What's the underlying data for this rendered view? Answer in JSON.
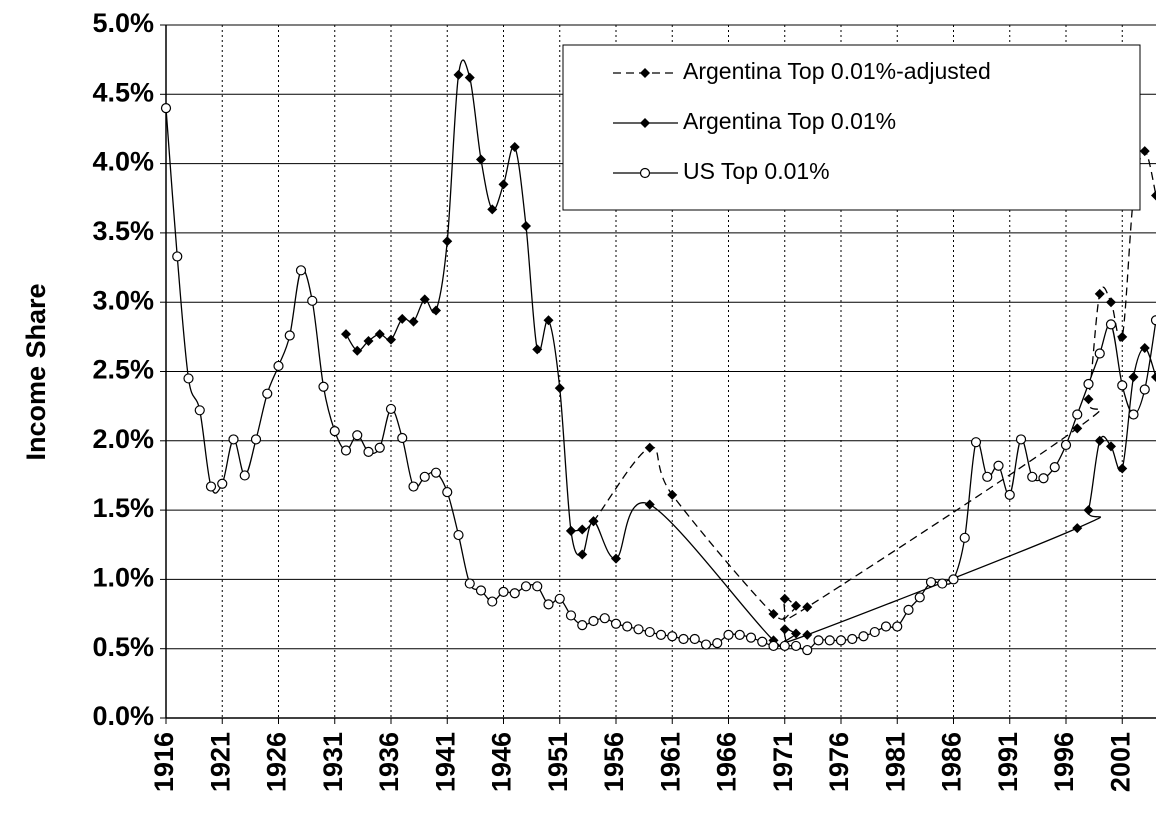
{
  "chart_data": {
    "type": "line",
    "y_label": "Income Share",
    "xlim": [
      1916,
      2004
    ],
    "xticks": [
      1916,
      1921,
      1926,
      1931,
      1936,
      1941,
      1946,
      1951,
      1956,
      1961,
      1966,
      1971,
      1976,
      1981,
      1986,
      1991,
      1996,
      2001
    ],
    "ylim": [
      0,
      5
    ],
    "yticks": [
      {
        "value": 0,
        "label": "0.0%"
      },
      {
        "value": 0.5,
        "label": "0.5%"
      },
      {
        "value": 1,
        "label": "1.0%"
      },
      {
        "value": 1.5,
        "label": "1.5%"
      },
      {
        "value": 2,
        "label": "2.0%"
      },
      {
        "value": 2.5,
        "label": "2.5%"
      },
      {
        "value": 3,
        "label": "3.0%"
      },
      {
        "value": 3.5,
        "label": "3.5%"
      },
      {
        "value": 4,
        "label": "4.0%"
      },
      {
        "value": 4.5,
        "label": "4.5%"
      },
      {
        "value": 5,
        "label": "5.0%"
      }
    ],
    "grid": true,
    "legend": "top-right",
    "series": [
      {
        "name": "Argentina Top 0.01%-adjusted",
        "color": "#000000",
        "dash": "dashed",
        "marker": "diamond",
        "x": [
          1952,
          1953,
          1954,
          1959,
          1961,
          1970,
          1971,
          1972,
          1973,
          1997,
          1998,
          1999,
          2000,
          2001,
          2002,
          2003,
          2004
        ],
        "values": [
          1.35,
          1.36,
          1.42,
          1.95,
          1.61,
          0.75,
          0.86,
          0.81,
          0.8,
          2.09,
          2.3,
          3.06,
          3.0,
          2.75,
          3.76,
          4.09,
          3.77
        ]
      },
      {
        "name": "Argentina Top 0.01%",
        "color": "#000000",
        "dash": "solid",
        "marker": "diamond",
        "x": [
          1932,
          1933,
          1934,
          1935,
          1936,
          1937,
          1938,
          1939,
          1940,
          1941,
          1942,
          1943,
          1944,
          1945,
          1946,
          1947,
          1948,
          1949,
          1950,
          1951,
          1952,
          1953,
          1954,
          1956,
          1959,
          1970,
          1971,
          1972,
          1973,
          1997,
          1998,
          1999,
          2000,
          2001,
          2002,
          2003,
          2004
        ],
        "values": [
          2.77,
          2.65,
          2.72,
          2.77,
          2.73,
          2.88,
          2.86,
          3.02,
          2.94,
          3.44,
          4.64,
          4.62,
          4.03,
          3.67,
          3.85,
          4.12,
          3.55,
          2.66,
          2.87,
          2.38,
          1.35,
          1.18,
          1.42,
          1.15,
          1.54,
          0.56,
          0.64,
          0.61,
          0.6,
          1.37,
          1.5,
          2.0,
          1.96,
          1.8,
          2.46,
          2.67,
          2.46
        ]
      },
      {
        "name": "US Top 0.01%",
        "color": "#000000",
        "dash": "solid",
        "marker": "circle",
        "x": [
          1916,
          1917,
          1918,
          1919,
          1920,
          1921,
          1922,
          1923,
          1924,
          1925,
          1926,
          1927,
          1928,
          1929,
          1930,
          1931,
          1932,
          1933,
          1934,
          1935,
          1936,
          1937,
          1938,
          1939,
          1940,
          1941,
          1942,
          1943,
          1944,
          1945,
          1946,
          1947,
          1948,
          1949,
          1950,
          1951,
          1952,
          1953,
          1954,
          1955,
          1956,
          1957,
          1958,
          1959,
          1960,
          1961,
          1962,
          1963,
          1964,
          1965,
          1966,
          1967,
          1968,
          1969,
          1970,
          1971,
          1972,
          1973,
          1974,
          1975,
          1976,
          1977,
          1978,
          1979,
          1980,
          1981,
          1982,
          1983,
          1984,
          1985,
          1986,
          1987,
          1988,
          1989,
          1990,
          1991,
          1992,
          1993,
          1994,
          1995,
          1996,
          1997,
          1998,
          1999,
          2000,
          2001,
          2002,
          2003,
          2004
        ],
        "values": [
          4.4,
          3.33,
          2.45,
          2.22,
          1.67,
          1.69,
          2.01,
          1.75,
          2.01,
          2.34,
          2.54,
          2.76,
          3.23,
          3.01,
          2.39,
          2.07,
          1.93,
          2.04,
          1.92,
          1.95,
          2.23,
          2.02,
          1.67,
          1.74,
          1.77,
          1.63,
          1.32,
          0.97,
          0.92,
          0.84,
          0.91,
          0.9,
          0.95,
          0.95,
          0.82,
          0.86,
          0.74,
          0.67,
          0.7,
          0.72,
          0.68,
          0.66,
          0.64,
          0.62,
          0.6,
          0.59,
          0.57,
          0.57,
          0.53,
          0.54,
          0.6,
          0.6,
          0.58,
          0.55,
          0.52,
          0.52,
          0.52,
          0.49,
          0.56,
          0.56,
          0.56,
          0.57,
          0.59,
          0.62,
          0.66,
          0.66,
          0.78,
          0.87,
          0.98,
          0.97,
          1.0,
          1.3,
          1.99,
          1.74,
          1.82,
          1.61,
          2.01,
          1.74,
          1.73,
          1.81,
          1.97,
          2.19,
          2.41,
          2.63,
          2.84,
          2.4,
          2.19,
          2.37,
          2.87
        ]
      }
    ]
  }
}
